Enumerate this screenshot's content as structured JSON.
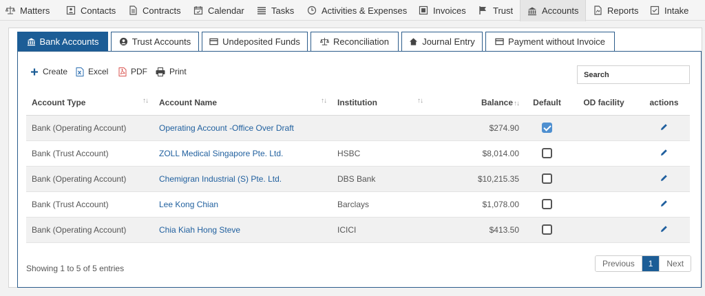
{
  "nav": {
    "items": [
      {
        "label": "Matters",
        "icon": "balance-scale-icon"
      },
      {
        "label": "Contacts",
        "icon": "contacts-card-icon"
      },
      {
        "label": "Contracts",
        "icon": "document-icon"
      },
      {
        "label": "Calendar",
        "icon": "calendar-icon"
      },
      {
        "label": "Tasks",
        "icon": "list-icon"
      },
      {
        "label": "Activities & Expenses",
        "icon": "clock-icon"
      },
      {
        "label": "Invoices",
        "icon": "invoice-icon"
      },
      {
        "label": "Trust",
        "icon": "flag-icon"
      },
      {
        "label": "Accounts",
        "icon": "bank-icon"
      },
      {
        "label": "Reports",
        "icon": "report-icon"
      },
      {
        "label": "Intake",
        "icon": "intake-icon"
      }
    ],
    "active": "Accounts"
  },
  "tabs": [
    {
      "label": "Bank Accounts",
      "icon": "bank-icon",
      "active": true
    },
    {
      "label": "Trust Accounts",
      "icon": "user-circle-icon",
      "active": false
    },
    {
      "label": "Undeposited Funds",
      "icon": "card-icon",
      "active": false
    },
    {
      "label": "Reconciliation",
      "icon": "balance-scale-icon",
      "active": false
    },
    {
      "label": "Journal Entry",
      "icon": "home-icon",
      "active": false
    },
    {
      "label": "Payment without Invoice",
      "icon": "card-icon",
      "active": false
    }
  ],
  "toolbar": {
    "create": "Create",
    "excel": "Excel",
    "pdf": "PDF",
    "print": "Print"
  },
  "search": {
    "placeholder": "Search",
    "value": ""
  },
  "table": {
    "headers": {
      "account_type": "Account Type",
      "account_name": "Account Name",
      "institution": "Institution",
      "balance": "Balance",
      "default": "Default",
      "od_facility": "OD facility",
      "actions": "actions"
    },
    "rows": [
      {
        "account_type": "Bank (Operating Account)",
        "account_name": "Operating Account -Office Over Draft",
        "institution": "",
        "balance": "$274.90",
        "default": true,
        "od_facility": ""
      },
      {
        "account_type": "Bank (Trust Account)",
        "account_name": "ZOLL Medical Singapore Pte. Ltd.",
        "institution": "HSBC",
        "balance": "$8,014.00",
        "default": false,
        "od_facility": ""
      },
      {
        "account_type": "Bank (Operating Account)",
        "account_name": "Chemigran Industrial (S) Pte. Ltd.",
        "institution": "DBS Bank",
        "balance": "$10,215.35",
        "default": false,
        "od_facility": ""
      },
      {
        "account_type": "Bank (Trust Account)",
        "account_name": "Lee Kong Chian",
        "institution": "Barclays",
        "balance": "$1,078.00",
        "default": false,
        "od_facility": ""
      },
      {
        "account_type": "Bank (Operating Account)",
        "account_name": "Chia Kiah Hong Steve",
        "institution": "ICICI",
        "balance": "$413.50",
        "default": false,
        "od_facility": ""
      }
    ]
  },
  "footer": {
    "info": "Showing 1 to 5 of 5 entries",
    "previous": "Previous",
    "current_page": "1",
    "next": "Next"
  },
  "colors": {
    "accent": "#1c5d96",
    "link": "#1f5f9e",
    "pdf_red": "#d9534f",
    "excel_blue": "#2a6db0"
  }
}
